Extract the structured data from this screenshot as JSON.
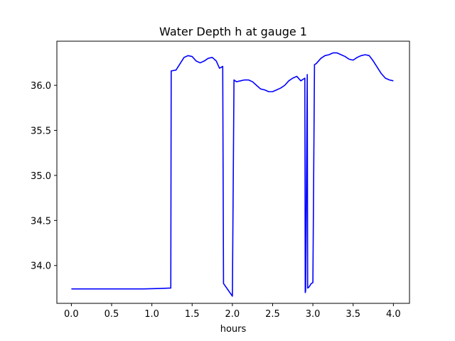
{
  "chart_data": {
    "type": "line",
    "title": "Water Depth h at gauge 1",
    "xlabel": "hours",
    "ylabel": "",
    "xlim": [
      -0.18,
      4.2
    ],
    "ylim": [
      33.58,
      36.49
    ],
    "xticks": [
      0.0,
      0.5,
      1.0,
      1.5,
      2.0,
      2.5,
      3.0,
      3.5,
      4.0
    ],
    "xtick_labels": [
      "0.0",
      "0.5",
      "1.0",
      "1.5",
      "2.0",
      "2.5",
      "3.0",
      "3.5",
      "4.0"
    ],
    "yticks": [
      34.0,
      34.5,
      35.0,
      35.5,
      36.0
    ],
    "ytick_labels": [
      "34.0",
      "34.5",
      "35.0",
      "35.5",
      "36.0"
    ],
    "grid": false,
    "legend": "none",
    "series": [
      {
        "color": "#0000ff",
        "x": [
          0.0,
          0.9,
          1.1,
          1.235,
          1.24,
          1.3,
          1.35,
          1.4,
          1.45,
          1.5,
          1.55,
          1.6,
          1.65,
          1.7,
          1.75,
          1.8,
          1.84,
          1.88,
          1.89,
          2.0,
          2.02,
          2.05,
          2.1,
          2.15,
          2.2,
          2.25,
          2.3,
          2.35,
          2.4,
          2.45,
          2.5,
          2.55,
          2.6,
          2.65,
          2.7,
          2.75,
          2.8,
          2.85,
          2.9,
          2.905,
          2.91,
          2.93,
          2.935,
          2.95,
          2.98,
          3.0,
          3.02,
          3.04,
          3.1,
          3.15,
          3.2,
          3.25,
          3.3,
          3.35,
          3.4,
          3.45,
          3.5,
          3.55,
          3.6,
          3.65,
          3.7,
          3.75,
          3.8,
          3.85,
          3.9,
          3.95,
          4.0
        ],
        "y": [
          33.74,
          33.74,
          33.745,
          33.75,
          36.16,
          36.17,
          36.24,
          36.31,
          36.33,
          36.32,
          36.27,
          36.25,
          36.27,
          36.3,
          36.31,
          36.27,
          36.19,
          36.21,
          33.8,
          33.66,
          36.06,
          36.04,
          36.05,
          36.06,
          36.06,
          36.04,
          36.0,
          35.96,
          35.95,
          35.93,
          35.93,
          35.95,
          35.97,
          36.0,
          36.05,
          36.08,
          36.1,
          36.05,
          36.08,
          33.7,
          33.72,
          36.12,
          33.75,
          33.76,
          33.8,
          33.81,
          36.23,
          36.24,
          36.3,
          36.33,
          36.34,
          36.36,
          36.36,
          36.34,
          36.32,
          36.29,
          36.28,
          36.31,
          36.33,
          36.34,
          36.33,
          36.27,
          36.2,
          36.13,
          36.08,
          36.06,
          36.05
        ]
      }
    ]
  }
}
